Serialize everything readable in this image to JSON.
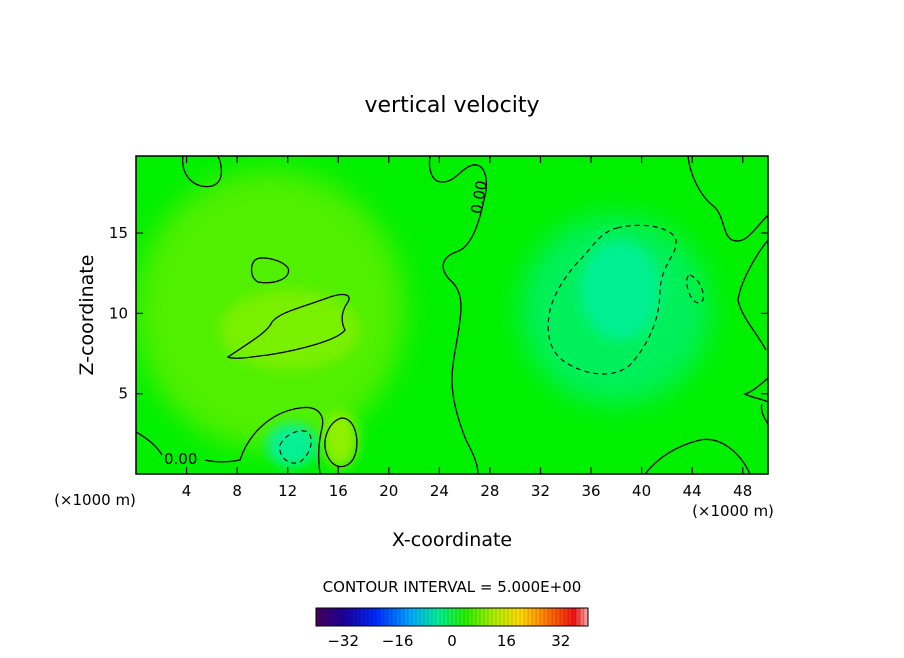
{
  "chart_data": {
    "type": "heatmap",
    "title": "vertical velocity",
    "xlabel": "X-coordinate",
    "ylabel": "Z-coordinate",
    "x_unit": "(×1000 m)",
    "x_ticks": [
      4,
      8,
      12,
      16,
      20,
      24,
      28,
      32,
      36,
      40,
      44,
      48
    ],
    "y_ticks": [
      5,
      10,
      15
    ],
    "xlim": [
      0,
      50
    ],
    "ylim": [
      0,
      19.8
    ],
    "contour_label": "0.00",
    "contour_interval_text": "CONTOUR INTERVAL = 5.000E+00",
    "colorbar": {
      "range": [
        -40,
        40
      ],
      "ticks": [
        -32,
        -16,
        0,
        16,
        32
      ],
      "colormap": "rainbow"
    },
    "colors": {
      "background_field": "#00f000",
      "positive_region": "#6cf000",
      "negative_region": "#00f07a"
    }
  }
}
